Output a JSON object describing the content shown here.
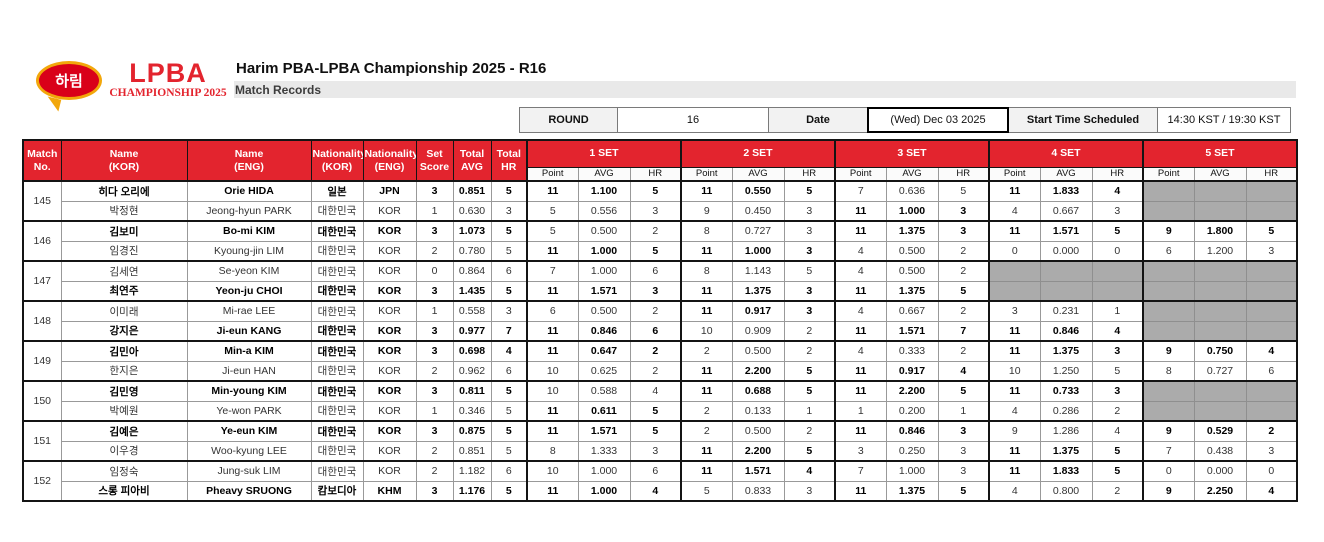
{
  "branding": {
    "harim_logo_text": "하림",
    "lpba_logo_line1": "LPBA",
    "lpba_logo_line2": "CHAMPIONSHIP 2025"
  },
  "header": {
    "title": "Harim PBA-LPBA Championship 2025 - R16",
    "subtitle": "Match Records"
  },
  "info_bar": {
    "round_label": "ROUND",
    "round_value": "16",
    "date_label": "Date",
    "date_value": "(Wed) Dec 03 2025",
    "start_label": "Start Time Scheduled",
    "start_value": "14:30 KST / 19:30 KST"
  },
  "colors": {
    "header_red": "#e3242e",
    "empty_cell_gray": "#ababab",
    "label_gray_bg": "#f2f2f2",
    "subtitle_bar_gray": "#e9e9e9",
    "harim_red": "#d90019",
    "harim_gold": "#f2a70b"
  },
  "table": {
    "columns": {
      "match_no": "Match\nNo.",
      "name_kor": "Name\n(KOR)",
      "name_eng": "Name\n(ENG)",
      "nat_kor": "Nationality\n(KOR)",
      "nat_eng": "Nationality\n(ENG)",
      "set_score": "Set\nScore",
      "total_avg": "Total\nAVG",
      "total_hr": "Total\nHR"
    },
    "set_headers": [
      "1 SET",
      "2 SET",
      "3 SET",
      "4 SET",
      "5 SET"
    ],
    "set_subcolumns": [
      "Point",
      "AVG",
      "HR"
    ],
    "matches": [
      {
        "no": "145",
        "players": [
          {
            "name_kor": "히다 오리에",
            "name_eng": "Orie HIDA",
            "nat_kor": "일본",
            "nat_eng": "JPN",
            "set_score": "3",
            "total_avg": "0.851",
            "total_hr": "5",
            "winner": true,
            "sets": [
              {
                "point": "11",
                "avg": "1.100",
                "hr": "5",
                "won": true
              },
              {
                "point": "11",
                "avg": "0.550",
                "hr": "5",
                "won": true
              },
              {
                "point": "7",
                "avg": "0.636",
                "hr": "5",
                "won": false
              },
              {
                "point": "11",
                "avg": "1.833",
                "hr": "4",
                "won": true
              },
              null
            ]
          },
          {
            "name_kor": "박정현",
            "name_eng": "Jeong-hyun PARK",
            "nat_kor": "대한민국",
            "nat_eng": "KOR",
            "set_score": "1",
            "total_avg": "0.630",
            "total_hr": "3",
            "winner": false,
            "sets": [
              {
                "point": "5",
                "avg": "0.556",
                "hr": "3",
                "won": false
              },
              {
                "point": "9",
                "avg": "0.450",
                "hr": "3",
                "won": false
              },
              {
                "point": "11",
                "avg": "1.000",
                "hr": "3",
                "won": true
              },
              {
                "point": "4",
                "avg": "0.667",
                "hr": "3",
                "won": false
              },
              null
            ]
          }
        ]
      },
      {
        "no": "146",
        "players": [
          {
            "name_kor": "김보미",
            "name_eng": "Bo-mi KIM",
            "nat_kor": "대한민국",
            "nat_eng": "KOR",
            "set_score": "3",
            "total_avg": "1.073",
            "total_hr": "5",
            "winner": true,
            "sets": [
              {
                "point": "5",
                "avg": "0.500",
                "hr": "2",
                "won": false
              },
              {
                "point": "8",
                "avg": "0.727",
                "hr": "3",
                "won": false
              },
              {
                "point": "11",
                "avg": "1.375",
                "hr": "3",
                "won": true
              },
              {
                "point": "11",
                "avg": "1.571",
                "hr": "5",
                "won": true
              },
              {
                "point": "9",
                "avg": "1.800",
                "hr": "5",
                "won": true
              }
            ]
          },
          {
            "name_kor": "임경진",
            "name_eng": "Kyoung-jin LIM",
            "nat_kor": "대한민국",
            "nat_eng": "KOR",
            "set_score": "2",
            "total_avg": "0.780",
            "total_hr": "5",
            "winner": false,
            "sets": [
              {
                "point": "11",
                "avg": "1.000",
                "hr": "5",
                "won": true
              },
              {
                "point": "11",
                "avg": "1.000",
                "hr": "3",
                "won": true
              },
              {
                "point": "4",
                "avg": "0.500",
                "hr": "2",
                "won": false
              },
              {
                "point": "0",
                "avg": "0.000",
                "hr": "0",
                "won": false
              },
              {
                "point": "6",
                "avg": "1.200",
                "hr": "3",
                "won": false
              }
            ]
          }
        ]
      },
      {
        "no": "147",
        "players": [
          {
            "name_kor": "김세연",
            "name_eng": "Se-yeon KIM",
            "nat_kor": "대한민국",
            "nat_eng": "KOR",
            "set_score": "0",
            "total_avg": "0.864",
            "total_hr": "6",
            "winner": false,
            "sets": [
              {
                "point": "7",
                "avg": "1.000",
                "hr": "6",
                "won": false
              },
              {
                "point": "8",
                "avg": "1.143",
                "hr": "5",
                "won": false
              },
              {
                "point": "4",
                "avg": "0.500",
                "hr": "2",
                "won": false
              },
              null,
              null
            ]
          },
          {
            "name_kor": "최연주",
            "name_eng": "Yeon-ju CHOI",
            "nat_kor": "대한민국",
            "nat_eng": "KOR",
            "set_score": "3",
            "total_avg": "1.435",
            "total_hr": "5",
            "winner": true,
            "sets": [
              {
                "point": "11",
                "avg": "1.571",
                "hr": "3",
                "won": true
              },
              {
                "point": "11",
                "avg": "1.375",
                "hr": "3",
                "won": true
              },
              {
                "point": "11",
                "avg": "1.375",
                "hr": "5",
                "won": true
              },
              null,
              null
            ]
          }
        ]
      },
      {
        "no": "148",
        "players": [
          {
            "name_kor": "이미래",
            "name_eng": "Mi-rae LEE",
            "nat_kor": "대한민국",
            "nat_eng": "KOR",
            "set_score": "1",
            "total_avg": "0.558",
            "total_hr": "3",
            "winner": false,
            "sets": [
              {
                "point": "6",
                "avg": "0.500",
                "hr": "2",
                "won": false
              },
              {
                "point": "11",
                "avg": "0.917",
                "hr": "3",
                "won": true
              },
              {
                "point": "4",
                "avg": "0.667",
                "hr": "2",
                "won": false
              },
              {
                "point": "3",
                "avg": "0.231",
                "hr": "1",
                "won": false
              },
              null
            ]
          },
          {
            "name_kor": "강지은",
            "name_eng": "Ji-eun KANG",
            "nat_kor": "대한민국",
            "nat_eng": "KOR",
            "set_score": "3",
            "total_avg": "0.977",
            "total_hr": "7",
            "winner": true,
            "sets": [
              {
                "point": "11",
                "avg": "0.846",
                "hr": "6",
                "won": true
              },
              {
                "point": "10",
                "avg": "0.909",
                "hr": "2",
                "won": false
              },
              {
                "point": "11",
                "avg": "1.571",
                "hr": "7",
                "won": true
              },
              {
                "point": "11",
                "avg": "0.846",
                "hr": "4",
                "won": true
              },
              null
            ]
          }
        ]
      },
      {
        "no": "149",
        "players": [
          {
            "name_kor": "김민아",
            "name_eng": "Min-a KIM",
            "nat_kor": "대한민국",
            "nat_eng": "KOR",
            "set_score": "3",
            "total_avg": "0.698",
            "total_hr": "4",
            "winner": true,
            "sets": [
              {
                "point": "11",
                "avg": "0.647",
                "hr": "2",
                "won": true
              },
              {
                "point": "2",
                "avg": "0.500",
                "hr": "2",
                "won": false
              },
              {
                "point": "4",
                "avg": "0.333",
                "hr": "2",
                "won": false
              },
              {
                "point": "11",
                "avg": "1.375",
                "hr": "3",
                "won": true
              },
              {
                "point": "9",
                "avg": "0.750",
                "hr": "4",
                "won": true
              }
            ]
          },
          {
            "name_kor": "한지은",
            "name_eng": "Ji-eun HAN",
            "nat_kor": "대한민국",
            "nat_eng": "KOR",
            "set_score": "2",
            "total_avg": "0.962",
            "total_hr": "6",
            "winner": false,
            "sets": [
              {
                "point": "10",
                "avg": "0.625",
                "hr": "2",
                "won": false
              },
              {
                "point": "11",
                "avg": "2.200",
                "hr": "5",
                "won": true
              },
              {
                "point": "11",
                "avg": "0.917",
                "hr": "4",
                "won": true
              },
              {
                "point": "10",
                "avg": "1.250",
                "hr": "5",
                "won": false
              },
              {
                "point": "8",
                "avg": "0.727",
                "hr": "6",
                "won": false
              }
            ]
          }
        ]
      },
      {
        "no": "150",
        "players": [
          {
            "name_kor": "김민영",
            "name_eng": "Min-young KIM",
            "nat_kor": "대한민국",
            "nat_eng": "KOR",
            "set_score": "3",
            "total_avg": "0.811",
            "total_hr": "5",
            "winner": true,
            "sets": [
              {
                "point": "10",
                "avg": "0.588",
                "hr": "4",
                "won": false
              },
              {
                "point": "11",
                "avg": "0.688",
                "hr": "5",
                "won": true
              },
              {
                "point": "11",
                "avg": "2.200",
                "hr": "5",
                "won": true
              },
              {
                "point": "11",
                "avg": "0.733",
                "hr": "3",
                "won": true
              },
              null
            ]
          },
          {
            "name_kor": "박예원",
            "name_eng": "Ye-won PARK",
            "nat_kor": "대한민국",
            "nat_eng": "KOR",
            "set_score": "1",
            "total_avg": "0.346",
            "total_hr": "5",
            "winner": false,
            "sets": [
              {
                "point": "11",
                "avg": "0.611",
                "hr": "5",
                "won": true
              },
              {
                "point": "2",
                "avg": "0.133",
                "hr": "1",
                "won": false
              },
              {
                "point": "1",
                "avg": "0.200",
                "hr": "1",
                "won": false
              },
              {
                "point": "4",
                "avg": "0.286",
                "hr": "2",
                "won": false
              },
              null
            ]
          }
        ]
      },
      {
        "no": "151",
        "players": [
          {
            "name_kor": "김예은",
            "name_eng": "Ye-eun KIM",
            "nat_kor": "대한민국",
            "nat_eng": "KOR",
            "set_score": "3",
            "total_avg": "0.875",
            "total_hr": "5",
            "winner": true,
            "sets": [
              {
                "point": "11",
                "avg": "1.571",
                "hr": "5",
                "won": true
              },
              {
                "point": "2",
                "avg": "0.500",
                "hr": "2",
                "won": false
              },
              {
                "point": "11",
                "avg": "0.846",
                "hr": "3",
                "won": true
              },
              {
                "point": "9",
                "avg": "1.286",
                "hr": "4",
                "won": false
              },
              {
                "point": "9",
                "avg": "0.529",
                "hr": "2",
                "won": true
              }
            ]
          },
          {
            "name_kor": "이우경",
            "name_eng": "Woo-kyung LEE",
            "nat_kor": "대한민국",
            "nat_eng": "KOR",
            "set_score": "2",
            "total_avg": "0.851",
            "total_hr": "5",
            "winner": false,
            "sets": [
              {
                "point": "8",
                "avg": "1.333",
                "hr": "3",
                "won": false
              },
              {
                "point": "11",
                "avg": "2.200",
                "hr": "5",
                "won": true
              },
              {
                "point": "3",
                "avg": "0.250",
                "hr": "3",
                "won": false
              },
              {
                "point": "11",
                "avg": "1.375",
                "hr": "5",
                "won": true
              },
              {
                "point": "7",
                "avg": "0.438",
                "hr": "3",
                "won": false
              }
            ]
          }
        ]
      },
      {
        "no": "152",
        "players": [
          {
            "name_kor": "임정숙",
            "name_eng": "Jung-suk LIM",
            "nat_kor": "대한민국",
            "nat_eng": "KOR",
            "set_score": "2",
            "total_avg": "1.182",
            "total_hr": "6",
            "winner": false,
            "sets": [
              {
                "point": "10",
                "avg": "1.000",
                "hr": "6",
                "won": false
              },
              {
                "point": "11",
                "avg": "1.571",
                "hr": "4",
                "won": true
              },
              {
                "point": "7",
                "avg": "1.000",
                "hr": "3",
                "won": false
              },
              {
                "point": "11",
                "avg": "1.833",
                "hr": "5",
                "won": true
              },
              {
                "point": "0",
                "avg": "0.000",
                "hr": "0",
                "won": false
              }
            ]
          },
          {
            "name_kor": "스롱 피아비",
            "name_eng": "Pheavy SRUONG",
            "nat_kor": "캄보디아",
            "nat_eng": "KHM",
            "set_score": "3",
            "total_avg": "1.176",
            "total_hr": "5",
            "winner": true,
            "sets": [
              {
                "point": "11",
                "avg": "1.000",
                "hr": "4",
                "won": true
              },
              {
                "point": "5",
                "avg": "0.833",
                "hr": "3",
                "won": false
              },
              {
                "point": "11",
                "avg": "1.375",
                "hr": "5",
                "won": true
              },
              {
                "point": "4",
                "avg": "0.800",
                "hr": "2",
                "won": false
              },
              {
                "point": "9",
                "avg": "2.250",
                "hr": "4",
                "won": true
              }
            ]
          }
        ]
      }
    ]
  }
}
